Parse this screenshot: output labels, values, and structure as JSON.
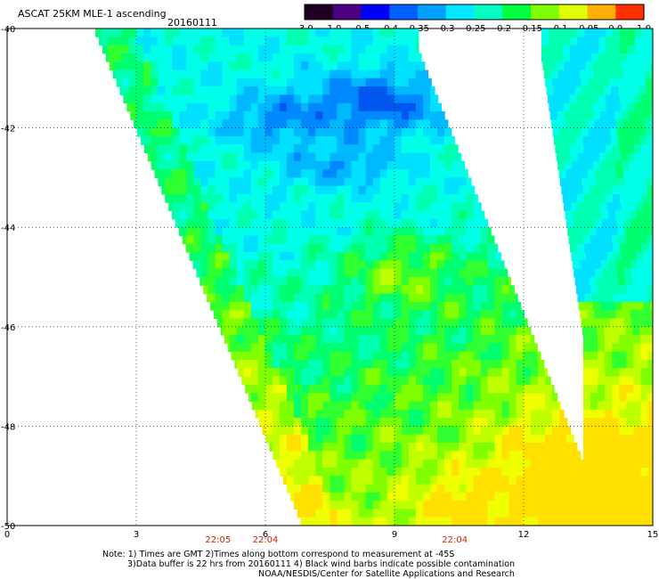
{
  "header": {
    "title": "ASCAT 25KM MLE-1 ascending",
    "date": "20160111"
  },
  "colorbar": {
    "labels": [
      "-3.0",
      "-1.0",
      "-0.5",
      "-0.4",
      "-0.35",
      "-0.3",
      "-0.25",
      "-0.2",
      "-0.15",
      "-0.1",
      "-0.05",
      "0.0",
      "1.0"
    ],
    "colors": [
      "#200020",
      "#4b0082",
      "#0000ff",
      "#0060ff",
      "#00a0ff",
      "#00e8ff",
      "#00ffc0",
      "#00ff40",
      "#80ff00",
      "#e0ff00",
      "#ffb000",
      "#ff3000"
    ]
  },
  "chart_data": {
    "type": "heatmap",
    "title": "ASCAT 25KM MLE-1 ascending",
    "subtitle": "20160111",
    "xlim": [
      0,
      15
    ],
    "ylim": [
      -50,
      -40
    ],
    "xticks": [
      "0",
      "3",
      "6",
      "9",
      "12",
      "15"
    ],
    "yticks": [
      "-40",
      "-42",
      "-44",
      "-46",
      "-48",
      "-50"
    ],
    "grid": true,
    "time_labels": [
      {
        "x": 4.9,
        "label": "22:05"
      },
      {
        "x": 6.0,
        "label": "22:04"
      },
      {
        "x": 10.4,
        "label": "22:04"
      }
    ],
    "notes": [
      "Note: 1) Times are GMT 2)Times along bottom correspond to measurement at -45S",
      "3)Data buffer is 22 hrs from 20160111 4) Black wind barbs indicate possible contamination",
      "NOAA/NESDIS/Center for Satellite Applications and Research"
    ]
  }
}
